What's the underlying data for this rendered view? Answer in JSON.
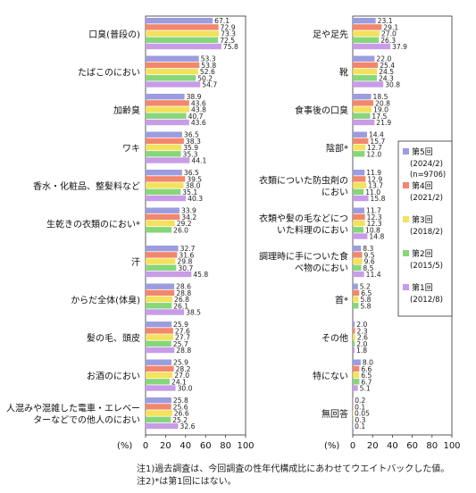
{
  "chart_data": {
    "type": "bar",
    "orientation": "horizontal",
    "unit": "(%)",
    "xlim": [
      0,
      100
    ],
    "xticks": [
      "0",
      "20",
      "40",
      "60",
      "80",
      "100"
    ],
    "series": [
      {
        "name": "第5回",
        "period": "(2024/2)",
        "extra": "(n=9706)",
        "color": "#9c9ce0"
      },
      {
        "name": "第4回",
        "period": "(2021/2)",
        "extra": "",
        "color": "#f2876c"
      },
      {
        "name": "第3回",
        "period": "(2018/2)",
        "extra": "",
        "color": "#f4e15c"
      },
      {
        "name": "第2回",
        "period": "(2015/5)",
        "extra": "",
        "color": "#86d67a"
      },
      {
        "name": "第1回",
        "period": "(2012/8)",
        "extra": "",
        "color": "#c89ce6"
      }
    ],
    "panels": [
      {
        "categories": [
          {
            "label": "口臭(普段の)",
            "values": [
              67.1,
              72.9,
              73.3,
              72.5,
              75.8
            ]
          },
          {
            "label": "たばこのにおい",
            "values": [
              53.3,
              53.8,
              52.6,
              50.2,
              54.7
            ]
          },
          {
            "label": "加齢臭",
            "values": [
              38.9,
              43.6,
              43.8,
              40.7,
              43.6
            ]
          },
          {
            "label": "ワキ",
            "values": [
              36.5,
              38.3,
              35.9,
              35.3,
              44.1
            ]
          },
          {
            "label": "香水・化粧品、整髪料など",
            "values": [
              36.5,
              39.5,
              38.0,
              35.1,
              40.3
            ]
          },
          {
            "label": "生乾きの衣類のにおい*",
            "values": [
              33.9,
              34.2,
              29.2,
              26.0,
              null
            ]
          },
          {
            "label": "汗",
            "values": [
              32.7,
              31.6,
              29.8,
              30.7,
              45.8
            ]
          },
          {
            "label": "からだ全体(体臭)",
            "values": [
              28.6,
              28.8,
              26.8,
              26.1,
              38.5
            ]
          },
          {
            "label": "髪の毛、頭皮",
            "values": [
              25.9,
              27.6,
              27.7,
              25.7,
              28.8
            ]
          },
          {
            "label": "お酒のにおい",
            "values": [
              25.9,
              28.2,
              27.0,
              24.1,
              30.0
            ]
          },
          {
            "label": "人混みや混雑した電車・エレベーターなどでの他人のにおい",
            "label_lines": [
              "人混みや混雑した電車・エレベー",
              "ターなどでの他人のにおい"
            ],
            "values": [
              25.8,
              25.6,
              26.6,
              25.2,
              32.6
            ]
          }
        ]
      },
      {
        "categories": [
          {
            "label": "足や足先",
            "values": [
              23.1,
              29.1,
              27.0,
              26.3,
              37.9
            ]
          },
          {
            "label": "靴",
            "values": [
              22.0,
              25.4,
              24.5,
              24.3,
              30.8
            ]
          },
          {
            "label": "食事後の口臭",
            "values": [
              18.5,
              20.8,
              19.0,
              17.5,
              21.9
            ]
          },
          {
            "label": "陰部*",
            "values": [
              14.4,
              15.7,
              12.7,
              12.0,
              null
            ]
          },
          {
            "label": "衣類についた防虫剤のにおい",
            "label_lines": [
              "衣類についた防虫剤の",
              "におい"
            ],
            "values": [
              11.9,
              12.9,
              13.7,
              11.0,
              15.8
            ]
          },
          {
            "label": "衣類や髪の毛などについた料理のにおい",
            "label_lines": [
              "衣類や髪の毛などにつ",
              "いた料理のにおい"
            ],
            "values": [
              11.7,
              12.3,
              12.3,
              10.8,
              14.8
            ]
          },
          {
            "label": "調理時に手についた食べ物のにおい",
            "label_lines": [
              "調理時に手についた食",
              "べ物のにおい"
            ],
            "values": [
              8.3,
              9.5,
              9.6,
              8.5,
              11.4
            ]
          },
          {
            "label": "首*",
            "values": [
              5.2,
              6.5,
              5.8,
              5.8,
              null
            ]
          },
          {
            "label": "その他",
            "values": [
              2.0,
              2.3,
              2.6,
              2.0,
              1.8
            ]
          },
          {
            "label": "特にない",
            "values": [
              8.0,
              6.6,
              6.5,
              6.7,
              5.1
            ]
          },
          {
            "label": "無回答",
            "values": [
              0.2,
              0.1,
              0.05,
              0.3,
              0.1
            ]
          }
        ]
      }
    ],
    "notes": [
      "注1)過去調査は、今回調査の性年代構成比にあわせてウエイトバックした値。",
      "注2)*は第1回にはない。"
    ]
  }
}
